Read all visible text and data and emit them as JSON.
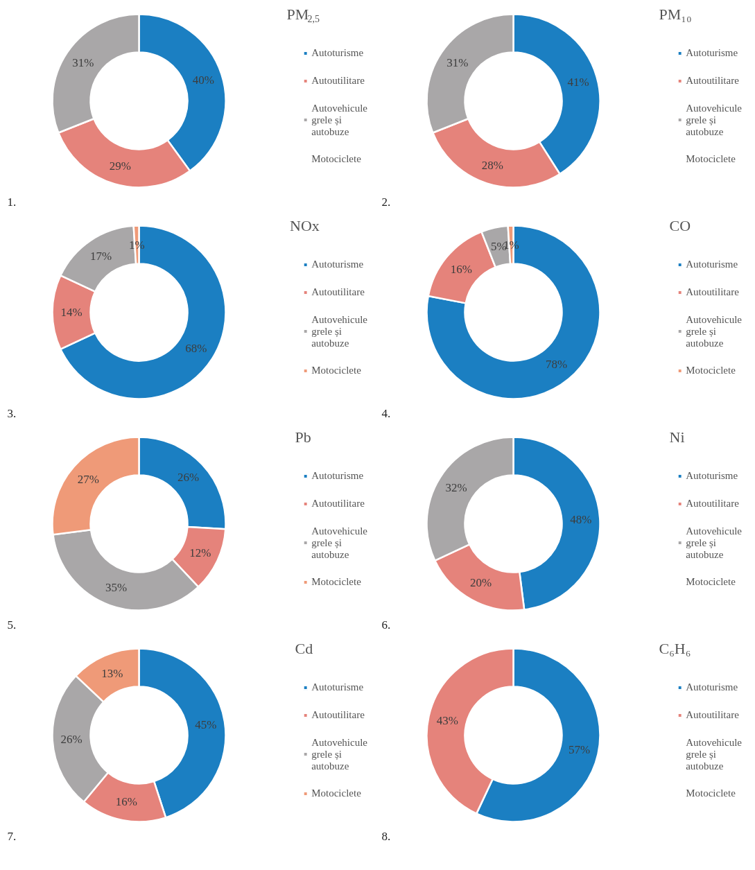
{
  "chart_data": [
    {
      "type": "donut",
      "title": "PM$_{2,5}$",
      "categories": [
        "Autoturisme",
        "Autoutilitare",
        "Autovehicule grele și autobuze",
        "Motociclete"
      ],
      "values": [
        40,
        29,
        31,
        0
      ],
      "colors": [
        "#1b7fc2",
        "#e5837b",
        "#a9a7a8",
        "#ef9a78"
      ],
      "value_labels": [
        "40%",
        "29%",
        "31%",
        null
      ],
      "legend": "right",
      "annotations": [
        "1."
      ]
    },
    {
      "type": "donut",
      "title": "PM₁₀",
      "categories": [
        "Autoturisme",
        "Autoutilitare",
        "Autovehicule grele și autobuze",
        "Motociclete"
      ],
      "values": [
        41,
        28,
        31,
        0
      ],
      "colors": [
        "#1b7fc2",
        "#e5837b",
        "#a9a7a8",
        "#ef9a78"
      ],
      "value_labels": [
        "41%",
        "28%",
        "31%",
        null
      ],
      "legend": "right",
      "annotations": [
        "2."
      ]
    },
    {
      "type": "donut",
      "title": "NOx",
      "categories": [
        "Autoturisme",
        "Autoutilitare",
        "Autovehicule grele și autobuze",
        "Motociclete"
      ],
      "values": [
        68,
        14,
        17,
        1
      ],
      "colors": [
        "#1b7fc2",
        "#e5837b",
        "#a9a7a8",
        "#ef9a78"
      ],
      "value_labels": [
        "68%",
        "14%",
        "17%",
        "1%"
      ],
      "legend": "right",
      "annotations": [
        "3."
      ]
    },
    {
      "type": "donut",
      "title": "CO",
      "categories": [
        "Autoturisme",
        "Autoutilitare",
        "Autovehicule grele și autobuze",
        "Motociclete"
      ],
      "values": [
        78,
        16,
        5,
        1
      ],
      "colors": [
        "#1b7fc2",
        "#e5837b",
        "#a9a7a8",
        "#ef9a78"
      ],
      "value_labels": [
        "78%",
        "16%",
        "5%",
        "1%"
      ],
      "legend": "right",
      "annotations": [
        "4."
      ]
    },
    {
      "type": "donut",
      "title": "Pb",
      "categories": [
        "Autoturisme",
        "Autoutilitare",
        "Autovehicule grele și autobuze",
        "Motociclete"
      ],
      "values": [
        26,
        12,
        35,
        27
      ],
      "colors": [
        "#1b7fc2",
        "#e5837b",
        "#a9a7a8",
        "#ef9a78"
      ],
      "value_labels": [
        "26%",
        "12%",
        "35%",
        "27%"
      ],
      "legend": "right",
      "annotations": [
        "5."
      ]
    },
    {
      "type": "donut",
      "title": "Ni",
      "categories": [
        "Autoturisme",
        "Autoutilitare",
        "Autovehicule grele și autobuze",
        "Motociclete"
      ],
      "values": [
        48,
        20,
        32,
        0
      ],
      "colors": [
        "#1b7fc2",
        "#e5837b",
        "#a9a7a8",
        "#ef9a78"
      ],
      "value_labels": [
        "48%",
        "20%",
        "32%",
        null
      ],
      "legend": "right",
      "annotations": [
        "6."
      ]
    },
    {
      "type": "donut",
      "title": "Cd",
      "categories": [
        "Autoturisme",
        "Autoutilitare",
        "Autovehicule grele și autobuze",
        "Motociclete"
      ],
      "values": [
        45,
        16,
        26,
        13
      ],
      "colors": [
        "#1b7fc2",
        "#e5837b",
        "#a9a7a8",
        "#ef9a78"
      ],
      "value_labels": [
        "45%",
        "16%",
        "26%",
        "13%"
      ],
      "legend": "right",
      "annotations": [
        "7."
      ]
    },
    {
      "type": "donut",
      "title": "C₆H₆",
      "categories": [
        "Autoturisme",
        "Autoutilitare",
        "Autovehicule grele și autobuze",
        "Motociclete"
      ],
      "values": [
        57,
        43,
        0,
        0
      ],
      "colors": [
        "#1b7fc2",
        "#e5837b",
        "#a9a7a8",
        "#ef9a78"
      ],
      "value_labels": [
        "57%",
        "43%",
        null,
        null
      ],
      "legend": "right",
      "annotations": [
        "8."
      ]
    }
  ]
}
